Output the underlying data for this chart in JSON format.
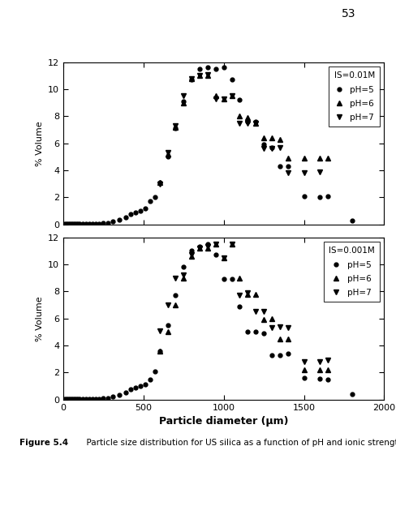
{
  "top_plot": {
    "title": "IS=0.01M",
    "ph5": {
      "x": [
        10,
        20,
        30,
        40,
        50,
        60,
        70,
        80,
        90,
        100,
        120,
        140,
        160,
        180,
        200,
        220,
        250,
        280,
        310,
        350,
        390,
        420,
        450,
        480,
        510,
        540,
        570,
        600,
        650,
        700,
        750,
        800,
        850,
        900,
        950,
        1000,
        1050,
        1100,
        1150,
        1200,
        1250,
        1300,
        1350,
        1400,
        1500,
        1600,
        1650,
        1800
      ],
      "y": [
        0.02,
        0.02,
        0.02,
        0.02,
        0.02,
        0.02,
        0.02,
        0.02,
        0.02,
        0.02,
        0.03,
        0.03,
        0.03,
        0.05,
        0.06,
        0.07,
        0.1,
        0.12,
        0.2,
        0.35,
        0.55,
        0.75,
        0.9,
        1.0,
        1.2,
        1.75,
        2.0,
        3.1,
        5.0,
        7.1,
        9.1,
        10.7,
        11.5,
        11.6,
        11.5,
        11.6,
        10.7,
        9.2,
        7.6,
        7.6,
        5.9,
        5.7,
        4.3,
        4.3,
        2.1,
        2.0,
        2.1,
        0.3
      ]
    },
    "ph6": {
      "x": [
        600,
        650,
        700,
        750,
        800,
        850,
        900,
        950,
        1000,
        1050,
        1100,
        1150,
        1200,
        1250,
        1300,
        1350,
        1400,
        1500,
        1600,
        1650
      ],
      "y": [
        3.1,
        5.2,
        7.2,
        9.0,
        10.8,
        11.0,
        11.0,
        9.5,
        9.3,
        9.5,
        8.0,
        7.9,
        7.5,
        6.4,
        6.4,
        6.3,
        4.9,
        4.9,
        4.9,
        4.9
      ]
    },
    "ph7": {
      "x": [
        600,
        650,
        700,
        750,
        800,
        850,
        900,
        950,
        1000,
        1050,
        1100,
        1150,
        1200,
        1250,
        1300,
        1350,
        1400,
        1500,
        1600
      ],
      "y": [
        3.0,
        5.3,
        7.3,
        9.5,
        10.8,
        11.0,
        11.1,
        9.3,
        9.3,
        9.5,
        7.5,
        7.5,
        7.5,
        5.6,
        5.6,
        5.7,
        3.85,
        3.85,
        3.9
      ]
    }
  },
  "bottom_plot": {
    "title": "IS=0.001M",
    "ph5": {
      "x": [
        10,
        20,
        30,
        40,
        50,
        60,
        70,
        80,
        90,
        100,
        120,
        140,
        160,
        180,
        200,
        220,
        250,
        280,
        310,
        350,
        390,
        420,
        450,
        480,
        510,
        540,
        570,
        600,
        650,
        700,
        750,
        800,
        850,
        900,
        950,
        1000,
        1050,
        1100,
        1150,
        1200,
        1250,
        1300,
        1350,
        1400,
        1500,
        1600,
        1650,
        1800
      ],
      "y": [
        0.02,
        0.02,
        0.02,
        0.02,
        0.02,
        0.02,
        0.02,
        0.02,
        0.02,
        0.02,
        0.03,
        0.03,
        0.03,
        0.05,
        0.06,
        0.07,
        0.1,
        0.12,
        0.2,
        0.35,
        0.55,
        0.75,
        0.9,
        1.0,
        1.1,
        1.5,
        2.1,
        3.6,
        5.5,
        7.7,
        9.8,
        11.0,
        11.3,
        11.5,
        10.7,
        8.9,
        8.9,
        6.9,
        5.0,
        5.0,
        4.9,
        3.3,
        3.3,
        3.4,
        1.6,
        1.55,
        1.5,
        0.4
      ]
    },
    "ph6": {
      "x": [
        600,
        650,
        700,
        750,
        800,
        850,
        900,
        950,
        1000,
        1050,
        1100,
        1150,
        1200,
        1250,
        1300,
        1350,
        1400,
        1500,
        1600,
        1650
      ],
      "y": [
        3.6,
        5.0,
        7.0,
        9.0,
        10.6,
        11.2,
        11.2,
        11.5,
        10.5,
        11.5,
        9.0,
        7.8,
        7.8,
        5.9,
        6.0,
        4.5,
        4.5,
        2.2,
        2.2,
        2.2
      ]
    },
    "ph7": {
      "x": [
        600,
        650,
        700,
        750,
        800,
        850,
        900,
        950,
        1000,
        1050,
        1100,
        1150,
        1200,
        1250,
        1300,
        1350,
        1400,
        1500,
        1600,
        1650
      ],
      "y": [
        5.1,
        7.0,
        9.0,
        9.2,
        10.7,
        11.2,
        11.3,
        11.5,
        10.5,
        11.5,
        7.7,
        7.9,
        6.5,
        6.5,
        5.3,
        5.4,
        5.3,
        2.8,
        2.8,
        2.9
      ]
    }
  },
  "xlabel": "Particle diameter (μm)",
  "ylabel": "% Volume",
  "xlim": [
    0,
    2000
  ],
  "ylim": [
    0,
    12
  ],
  "yticks": [
    0,
    2,
    4,
    6,
    8,
    10,
    12
  ],
  "xticks": [
    0,
    500,
    1000,
    1500,
    2000
  ],
  "figure_caption_bold": "Figure 5.4",
  "figure_caption_rest": "  Particle size distribution for US silica as a function of pH and ionic strength.",
  "page_number": "53",
  "marker_color": "black",
  "background_color": "white"
}
